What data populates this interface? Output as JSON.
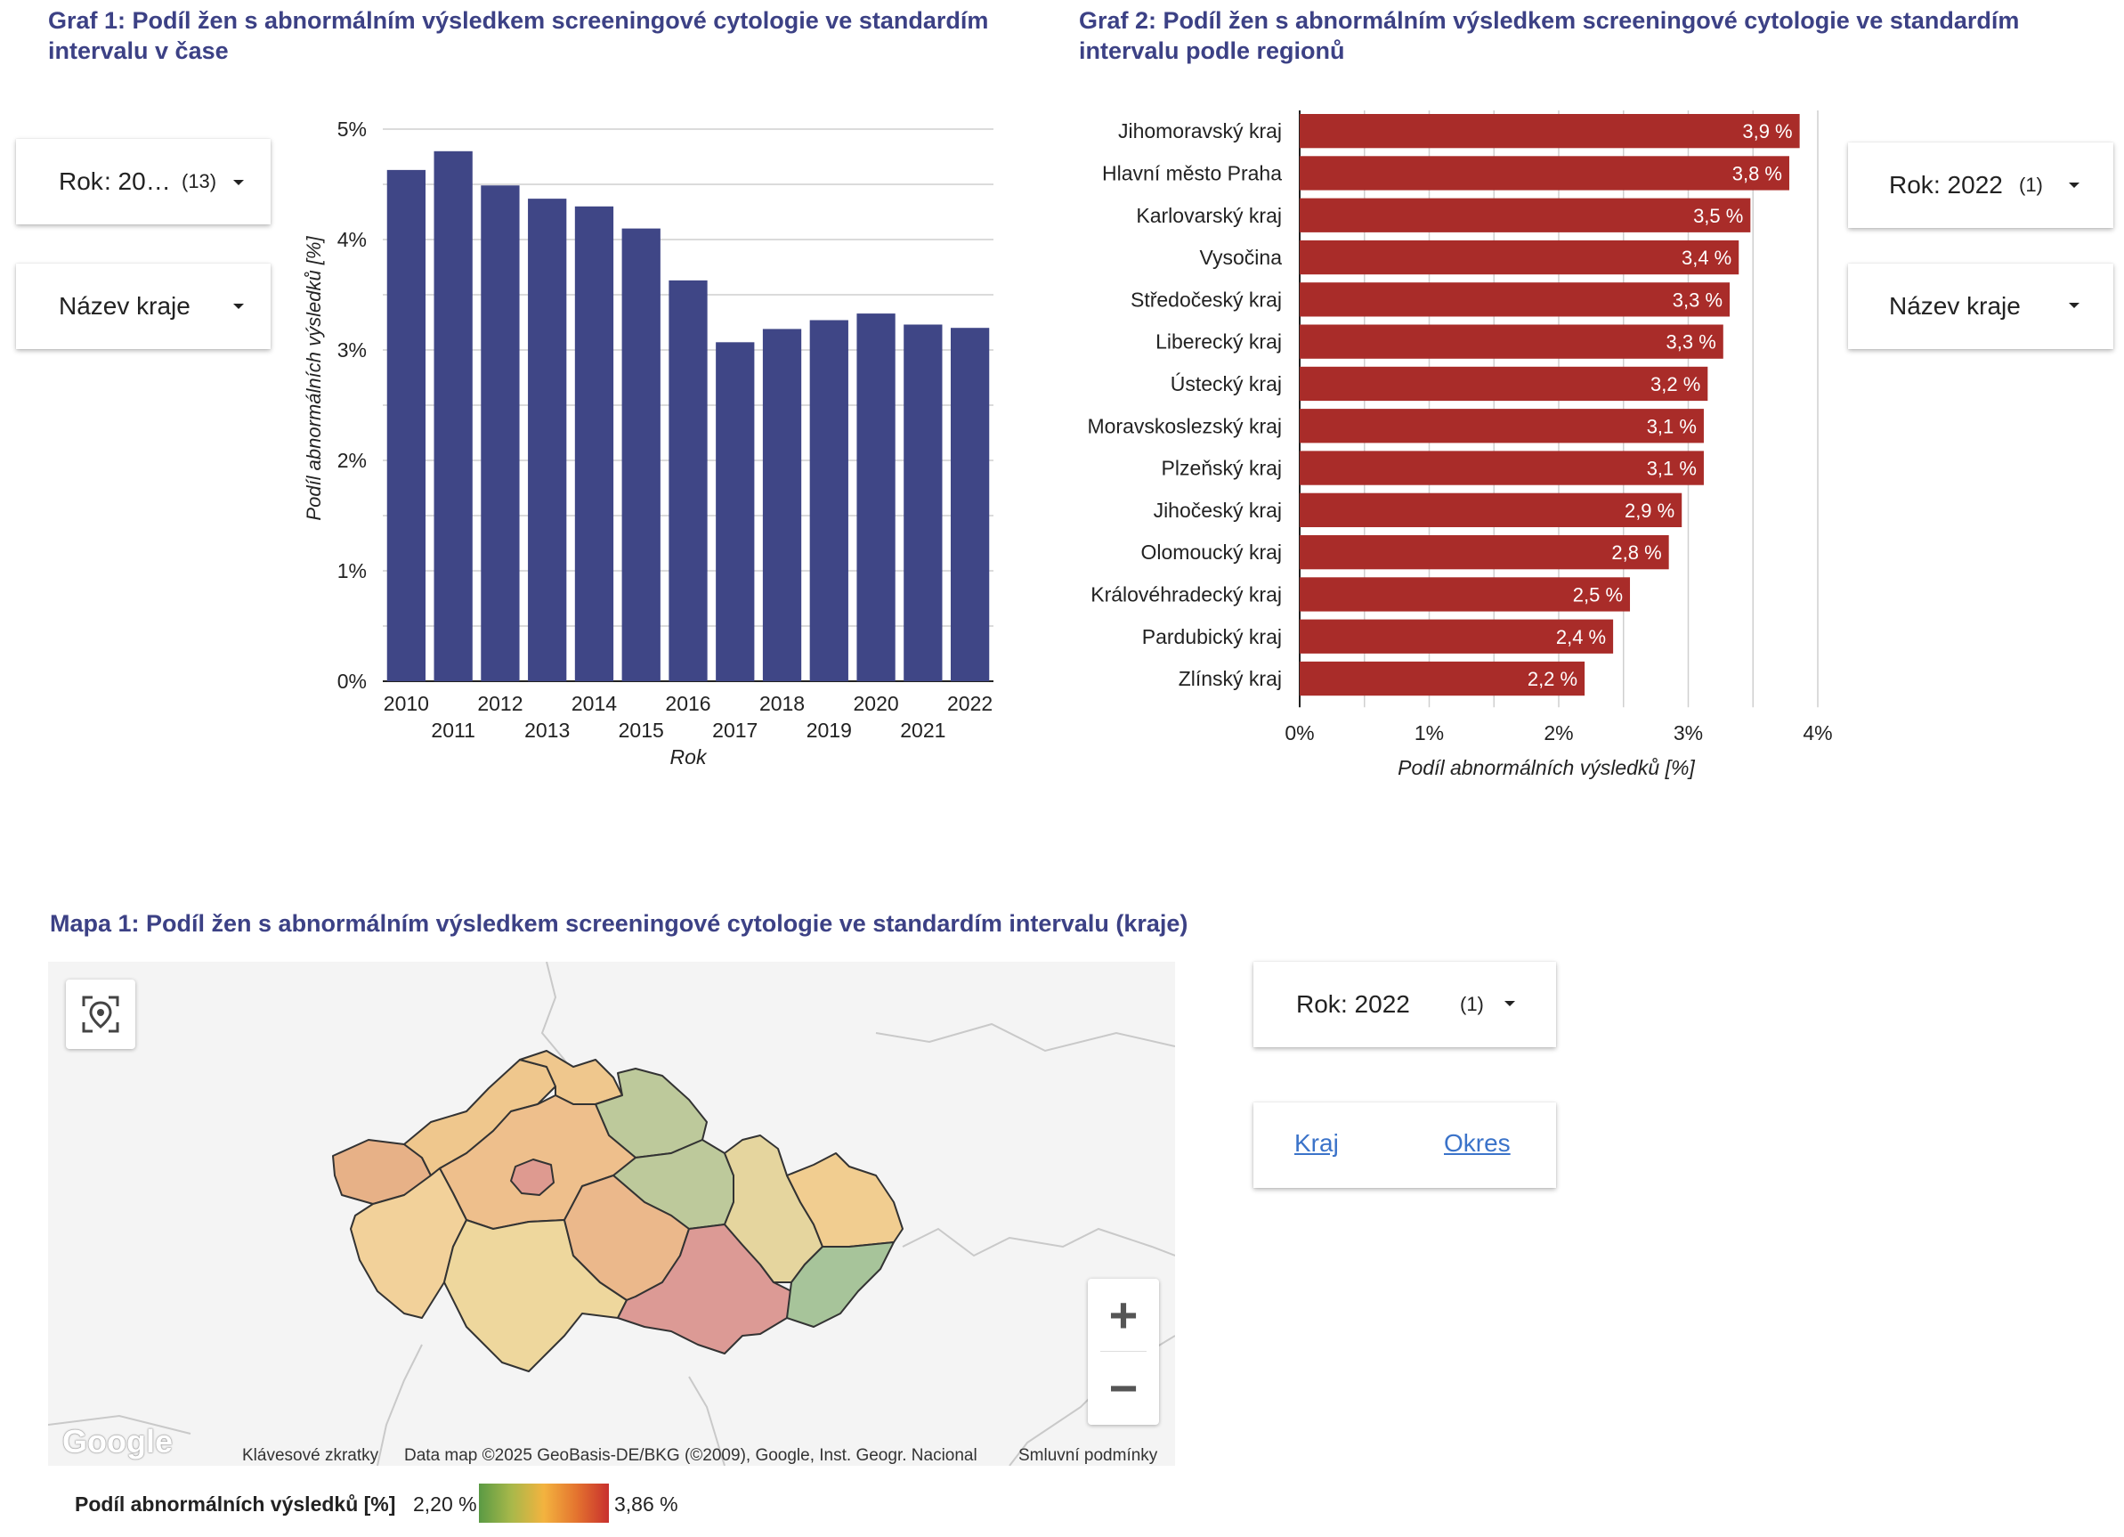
{
  "graf1": {
    "title": "Graf 1: Podíl žen s abnormálním výsledkem screeningové cytologie ve standardím intervalu v čase",
    "filter_year": {
      "label": "Rok",
      "value": ": 20…",
      "count": "(13)"
    },
    "filter_region": {
      "label": "Název kraje"
    }
  },
  "graf2": {
    "title": "Graf 2: Podíl žen s abnormálním výsledkem screeningové cytologie ve standardím intervalu podle regionů",
    "filter_year": {
      "label": "Rok",
      "value": ": 2022",
      "count": "(1)"
    },
    "filter_region": {
      "label": "Název kraje"
    }
  },
  "mapa1": {
    "title": "Mapa 1: Podíl žen s abnormálním výsledkem screeningové cytologie ve standardím intervalu (kraje)",
    "filter_year": {
      "label": "Rok",
      "value": ": 2022",
      "count": "(1)"
    },
    "tabs": [
      "Kraj",
      "Okres"
    ],
    "attribution": {
      "shortcuts": "Klávesové zkratky",
      "data": "Data map ©2025 GeoBasis-DE/BKG (©2009), Google, Inst. Geogr. Nacional",
      "terms": "Smluvní podmínky",
      "logo": "Google"
    },
    "legend": {
      "title": "Podíl abnormálních výsledků [%]",
      "min": "2,20 %",
      "max": "3,86 %"
    },
    "controls": {
      "zoom_in": "+",
      "zoom_out": "−"
    },
    "region_colors": {
      "karlovarsky": "#e7b187",
      "ustecky": "#efc78d",
      "liberecky": "#efc78d",
      "stredocesky": "#eebf8c",
      "praha": "#de9a90",
      "plzensky": "#f2d19a",
      "jihocesky": "#eed79d",
      "kralovehradecky": "#bdc99b",
      "pardubicky": "#bdc99b",
      "vysocina": "#ebb88b",
      "jihomoravsky": "#dc9a95",
      "olomoucky": "#e5d59e",
      "moravskoslezsky": "#f1cd90",
      "zlinsky": "#a7c49a"
    }
  },
  "chart_data": [
    {
      "type": "bar",
      "title": "Graf 1: Podíl žen s abnormálním výsledkem screeningové cytologie ve standardím intervalu v čase",
      "xlabel": "Rok",
      "ylabel": "Podíl abnormálních výsledků [%]",
      "categories": [
        "2010",
        "2011",
        "2012",
        "2013",
        "2014",
        "2015",
        "2016",
        "2017",
        "2018",
        "2019",
        "2020",
        "2021",
        "2022"
      ],
      "values": [
        4.63,
        4.8,
        4.49,
        4.37,
        4.3,
        4.1,
        3.63,
        3.07,
        3.19,
        3.27,
        3.33,
        3.23,
        3.2
      ],
      "ylim": [
        0,
        5
      ],
      "yticks": [
        "0%",
        "1%",
        "2%",
        "3%",
        "4%",
        "5%"
      ],
      "color": "#3f4686",
      "grid": true
    },
    {
      "type": "bar",
      "orientation": "horizontal",
      "title": "Graf 2: Podíl žen s abnormálním výsledkem screeningové cytologie ve standardím intervalu podle regionů",
      "xlabel": "Podíl abnormálních výsledků [%]",
      "categories": [
        "Jihomoravský kraj",
        "Hlavní město Praha",
        "Karlovarský kraj",
        "Vysočina",
        "Středočeský kraj",
        "Liberecký kraj",
        "Ústecký kraj",
        "Moravskoslezský kraj",
        "Plzeňský kraj",
        "Jihočeský kraj",
        "Olomoucký kraj",
        "Královéhradecký kraj",
        "Pardubický kraj",
        "Zlínský kraj"
      ],
      "values": [
        3.86,
        3.78,
        3.48,
        3.39,
        3.32,
        3.27,
        3.15,
        3.12,
        3.12,
        2.95,
        2.85,
        2.55,
        2.42,
        2.2
      ],
      "data_labels": [
        "3,9 %",
        "3,8 %",
        "3,5 %",
        "3,4 %",
        "3,3 %",
        "3,3 %",
        "3,2 %",
        "3,1 %",
        "3,1 %",
        "2,9 %",
        "2,8 %",
        "2,5 %",
        "2,4 %",
        "2,2 %"
      ],
      "xlim": [
        0,
        4
      ],
      "xticks": [
        "0%",
        "1%",
        "2%",
        "3%",
        "4%"
      ],
      "color": "#a92c29",
      "grid": true
    }
  ]
}
